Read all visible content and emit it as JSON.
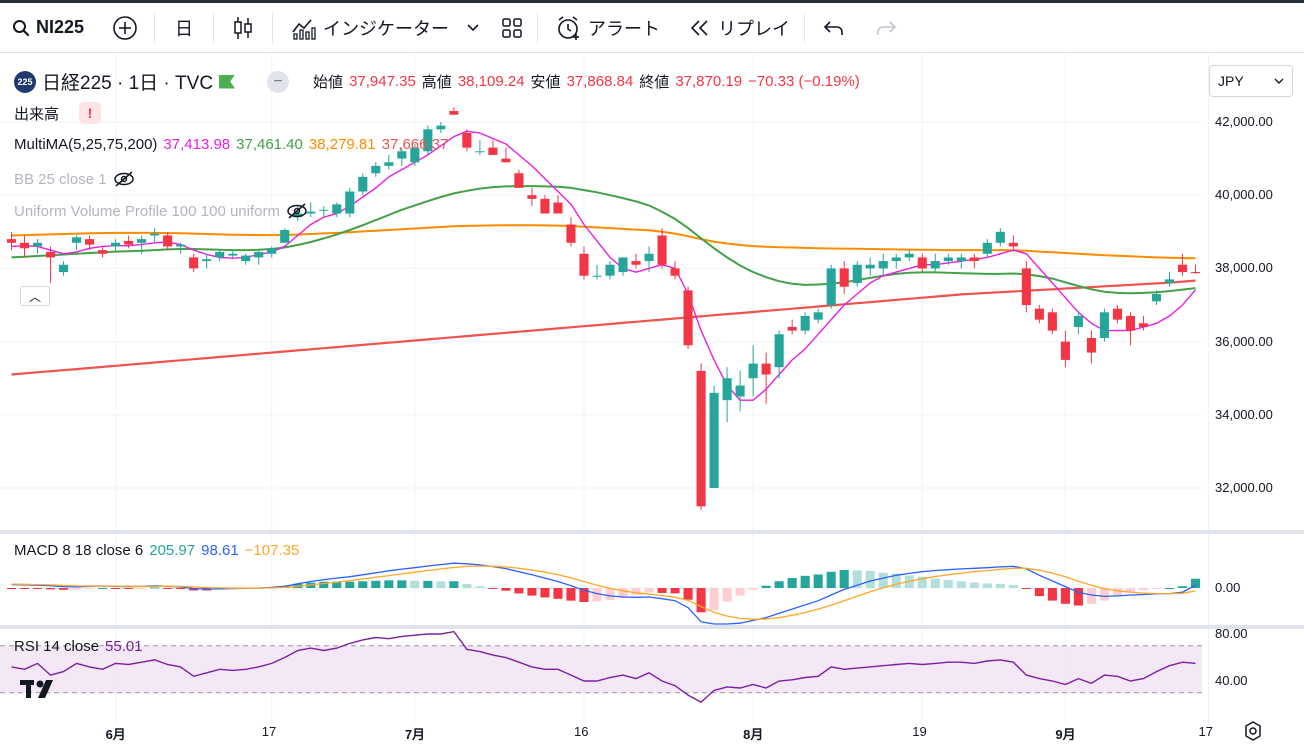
{
  "toolbar": {
    "symbol": "NI225",
    "interval": "日",
    "indicators_label": "インジケーター",
    "alert_label": "アラート",
    "replay_label": "リプレイ"
  },
  "legend": {
    "badge": "225",
    "title": "日経225 · 1日 · TVC",
    "open_label": "始値",
    "open": "37,947.35",
    "high_label": "高値",
    "high": "38,109.24",
    "low_label": "安値",
    "low": "37,868.84",
    "close_label": "終値",
    "close": "37,870.19",
    "change": "−70.33 (−0.19%)",
    "volume_label": "出来高",
    "multima_label": "MultiMA(5,25,75,200)",
    "ma5": "37,413.98",
    "ma25": "37,461.40",
    "ma75": "38,279.81",
    "ma200": "37,666.37",
    "bb_label": "BB 25 close 1",
    "vp_label": "Uniform Volume Profile 100 100 uniform",
    "macd_label": "MACD 8 18 close 6",
    "macd_hist": "205.97",
    "macd_line": "98.61",
    "macd_signal": "−107.35",
    "rsi_label": "RSI 14 close",
    "rsi_value": "55.01"
  },
  "currency": "JPY",
  "colors": {
    "up": "#26a69a",
    "down": "#f23645",
    "ma5": "#e91ee6",
    "ma25": "#43a047",
    "ma75": "#fb8c00",
    "ma200": "#ef5350",
    "macd_line": "#2962ff",
    "macd_signal": "#ffa726",
    "rsi": "#7b1fa2"
  },
  "chart_data": {
    "type": "candlestick",
    "price_axis": [
      "42,000.00",
      "40,000.00",
      "38,000.00",
      "36,000.00",
      "34,000.00",
      "32,000.00"
    ],
    "price_ticks": [
      42000,
      40000,
      38000,
      36000,
      34000,
      32000
    ],
    "ylim": [
      31000,
      43000
    ],
    "macd_axis": [
      "0.00"
    ],
    "rsi_axis": [
      "80.00",
      "40.00"
    ],
    "x_labels": [
      "6月",
      "17",
      "7月",
      "16",
      "8月",
      "19",
      "9月",
      "17"
    ],
    "candles": [
      [
        38800,
        39000,
        38500,
        38700
      ],
      [
        38700,
        38900,
        38300,
        38550
      ],
      [
        38600,
        38800,
        38400,
        38700
      ],
      [
        38450,
        38600,
        37600,
        38300
      ],
      [
        37900,
        38200,
        37800,
        38100
      ],
      [
        38700,
        38900,
        38500,
        38850
      ],
      [
        38800,
        38900,
        38500,
        38650
      ],
      [
        38500,
        38600,
        38300,
        38400
      ],
      [
        38600,
        38800,
        38450,
        38700
      ],
      [
        38750,
        38900,
        38550,
        38650
      ],
      [
        38700,
        38900,
        38400,
        38800
      ],
      [
        38900,
        39100,
        38700,
        38950
      ],
      [
        38900,
        39000,
        38500,
        38600
      ],
      [
        38600,
        38700,
        38400,
        38650
      ],
      [
        38300,
        38400,
        37900,
        38000
      ],
      [
        38200,
        38400,
        38000,
        38250
      ],
      [
        38300,
        38500,
        38200,
        38450
      ],
      [
        38350,
        38500,
        38250,
        38400
      ],
      [
        38200,
        38400,
        38100,
        38350
      ],
      [
        38300,
        38500,
        38100,
        38450
      ],
      [
        38400,
        38600,
        38300,
        38550
      ],
      [
        38700,
        39100,
        38700,
        39050
      ],
      [
        39400,
        39700,
        39300,
        39500
      ],
      [
        39500,
        39800,
        39400,
        39550
      ],
      [
        39600,
        39700,
        39400,
        39600
      ],
      [
        39500,
        39800,
        39400,
        39750
      ],
      [
        39500,
        40200,
        39400,
        40100
      ],
      [
        40100,
        40600,
        40000,
        40500
      ],
      [
        40600,
        40900,
        40500,
        40800
      ],
      [
        40800,
        41100,
        40700,
        40900
      ],
      [
        41000,
        41300,
        40800,
        41200
      ],
      [
        40900,
        41400,
        40800,
        41300
      ],
      [
        41200,
        41900,
        41100,
        41800
      ],
      [
        41800,
        42000,
        41700,
        41900
      ],
      [
        42300,
        42400,
        42200,
        42200
      ],
      [
        41700,
        41800,
        41200,
        41300
      ],
      [
        41200,
        41500,
        41100,
        41200
      ],
      [
        41300,
        41500,
        41100,
        41100
      ],
      [
        41000,
        41300,
        40900,
        40900
      ],
      [
        40600,
        40700,
        40200,
        40200
      ],
      [
        40000,
        40200,
        39700,
        39900
      ],
      [
        39900,
        40000,
        39500,
        39500
      ],
      [
        39800,
        40000,
        39500,
        39500
      ],
      [
        39200,
        39400,
        38600,
        38700
      ],
      [
        38400,
        38600,
        37700,
        37800
      ],
      [
        37800,
        38100,
        37700,
        37800
      ],
      [
        37800,
        38200,
        37700,
        38100
      ],
      [
        37900,
        38300,
        37800,
        38300
      ],
      [
        38200,
        38400,
        38000,
        38100
      ],
      [
        38200,
        38600,
        37900,
        38400
      ],
      [
        38900,
        39100,
        38000,
        38100
      ],
      [
        38000,
        38200,
        37700,
        37800
      ],
      [
        37400,
        37500,
        35800,
        35900
      ],
      [
        35200,
        35400,
        31400,
        31500
      ],
      [
        32000,
        34800,
        32000,
        34600
      ],
      [
        34400,
        35300,
        33800,
        35000
      ],
      [
        34500,
        35200,
        34100,
        34800
      ],
      [
        35000,
        35900,
        34500,
        35400
      ],
      [
        35400,
        35700,
        34300,
        35100
      ],
      [
        35300,
        36300,
        35000,
        36200
      ],
      [
        36400,
        36600,
        36200,
        36300
      ],
      [
        36300,
        36800,
        36200,
        36700
      ],
      [
        36600,
        36900,
        36500,
        36800
      ],
      [
        37000,
        38100,
        36900,
        38000
      ],
      [
        38000,
        38200,
        37300,
        37500
      ],
      [
        37600,
        38200,
        37500,
        38100
      ],
      [
        38000,
        38300,
        37800,
        38100
      ],
      [
        38000,
        38400,
        37800,
        38200
      ],
      [
        38200,
        38400,
        38000,
        38300
      ],
      [
        38300,
        38500,
        38200,
        38400
      ],
      [
        38300,
        38400,
        37900,
        38000
      ],
      [
        38000,
        38400,
        37900,
        38200
      ],
      [
        38200,
        38400,
        38100,
        38300
      ],
      [
        38200,
        38400,
        38000,
        38300
      ],
      [
        38300,
        38400,
        38000,
        38200
      ],
      [
        38400,
        38800,
        38300,
        38700
      ],
      [
        38700,
        39100,
        38600,
        39000
      ],
      [
        38700,
        38900,
        38500,
        38600
      ],
      [
        38000,
        38200,
        36800,
        37000
      ],
      [
        36900,
        37000,
        36500,
        36600
      ],
      [
        36800,
        36900,
        36200,
        36300
      ],
      [
        36000,
        36300,
        35300,
        35500
      ],
      [
        36400,
        36800,
        36200,
        36700
      ],
      [
        36100,
        36300,
        35400,
        35700
      ],
      [
        36100,
        36900,
        36000,
        36800
      ],
      [
        36900,
        37000,
        36500,
        36600
      ],
      [
        36700,
        36800,
        35900,
        36300
      ],
      [
        36500,
        36700,
        36300,
        36400
      ],
      [
        37100,
        37400,
        37000,
        37300
      ],
      [
        37600,
        37900,
        37500,
        37700
      ],
      [
        38100,
        38400,
        37800,
        37900
      ],
      [
        37900,
        38100,
        37850,
        37870
      ]
    ],
    "ma5": [
      38600,
      38620,
      38600,
      38500,
      38400,
      38450,
      38550,
      38600,
      38620,
      38620,
      38650,
      38700,
      38720,
      38650,
      38500,
      38380,
      38300,
      38280,
      38300,
      38380,
      38450,
      38600,
      38900,
      39200,
      39400,
      39500,
      39700,
      39950,
      40200,
      40500,
      40700,
      40900,
      41100,
      41350,
      41600,
      41750,
      41700,
      41550,
      41400,
      41100,
      40800,
      40450,
      40100,
      39750,
      39200,
      38750,
      38300,
      38000,
      37900,
      38000,
      38100,
      38000,
      37300,
      36300,
      35500,
      34800,
      34400,
      34400,
      34700,
      35100,
      35500,
      35800,
      36200,
      36600,
      37000,
      37300,
      37600,
      37800,
      37900,
      38000,
      38100,
      38100,
      38150,
      38200,
      38250,
      38300,
      38400,
      38500,
      38400,
      38000,
      37600,
      37200,
      36800,
      36500,
      36300,
      36300,
      36300,
      36400,
      36500,
      36700,
      37000,
      37414
    ],
    "ma25": [
      38300,
      38320,
      38340,
      38360,
      38380,
      38400,
      38420,
      38440,
      38460,
      38470,
      38480,
      38500,
      38520,
      38530,
      38530,
      38520,
      38510,
      38500,
      38500,
      38510,
      38530,
      38570,
      38640,
      38720,
      38820,
      38930,
      39050,
      39180,
      39320,
      39460,
      39600,
      39720,
      39840,
      39950,
      40050,
      40120,
      40180,
      40220,
      40240,
      40250,
      40250,
      40240,
      40230,
      40200,
      40140,
      40080,
      40000,
      39920,
      39830,
      39720,
      39550,
      39350,
      39100,
      38820,
      38550,
      38300,
      38080,
      37900,
      37760,
      37650,
      37580,
      37550,
      37560,
      37580,
      37620,
      37680,
      37740,
      37800,
      37850,
      37880,
      37890,
      37890,
      37880,
      37870,
      37860,
      37850,
      37850,
      37860,
      37840,
      37790,
      37720,
      37620,
      37520,
      37430,
      37360,
      37330,
      37320,
      37330,
      37350,
      37380,
      37420,
      37461
    ],
    "ma75": [
      38900,
      38910,
      38920,
      38930,
      38940,
      38950,
      38960,
      38965,
      38970,
      38970,
      38970,
      38970,
      38965,
      38960,
      38950,
      38940,
      38930,
      38920,
      38915,
      38910,
      38910,
      38915,
      38925,
      38940,
      38955,
      38970,
      38990,
      39010,
      39030,
      39050,
      39070,
      39090,
      39110,
      39130,
      39150,
      39160,
      39170,
      39175,
      39180,
      39180,
      39180,
      39175,
      39170,
      39160,
      39140,
      39120,
      39100,
      39080,
      39060,
      39040,
      39000,
      38950,
      38880,
      38800,
      38730,
      38680,
      38640,
      38610,
      38590,
      38580,
      38570,
      38560,
      38550,
      38545,
      38540,
      38535,
      38530,
      38525,
      38520,
      38515,
      38510,
      38505,
      38500,
      38500,
      38500,
      38500,
      38500,
      38495,
      38480,
      38460,
      38440,
      38420,
      38400,
      38380,
      38360,
      38345,
      38330,
      38315,
      38300,
      38290,
      38285,
      38280
    ],
    "ma200": [
      35100,
      35130,
      35160,
      35190,
      35220,
      35250,
      35280,
      35310,
      35340,
      35370,
      35400,
      35430,
      35460,
      35490,
      35520,
      35550,
      35580,
      35610,
      35640,
      35670,
      35700,
      35730,
      35760,
      35790,
      35820,
      35850,
      35880,
      35910,
      35940,
      35970,
      36000,
      36030,
      36060,
      36090,
      36120,
      36150,
      36180,
      36210,
      36240,
      36270,
      36300,
      36330,
      36360,
      36390,
      36420,
      36450,
      36480,
      36510,
      36540,
      36570,
      36600,
      36630,
      36660,
      36690,
      36720,
      36750,
      36780,
      36810,
      36840,
      36870,
      36900,
      36930,
      36960,
      36990,
      37020,
      37050,
      37080,
      37110,
      37140,
      37170,
      37200,
      37230,
      37260,
      37290,
      37310,
      37330,
      37350,
      37370,
      37390,
      37410,
      37430,
      37450,
      37470,
      37490,
      37510,
      37530,
      37550,
      37570,
      37590,
      37610,
      37640,
      37666
    ],
    "macd": [
      120,
      110,
      100,
      80,
      50,
      40,
      60,
      70,
      60,
      50,
      60,
      80,
      60,
      40,
      -20,
      -40,
      -30,
      -20,
      -10,
      0,
      20,
      60,
      150,
      230,
      300,
      350,
      400,
      470,
      540,
      610,
      670,
      720,
      780,
      830,
      880,
      860,
      820,
      760,
      690,
      580,
      470,
      350,
      230,
      80,
      -80,
      -200,
      -280,
      -320,
      -330,
      -320,
      -380,
      -450,
      -700,
      -1200,
      -1350,
      -1300,
      -1250,
      -1150,
      -1050,
      -900,
      -750,
      -600,
      -450,
      -250,
      -50,
      100,
      250,
      350,
      450,
      520,
      580,
      620,
      650,
      680,
      700,
      720,
      750,
      770,
      680,
      450,
      250,
      50,
      -150,
      -250,
      -300,
      -280,
      -250,
      -230,
      -210,
      -200,
      -150,
      99
    ],
    "macd_signal": [
      140,
      130,
      120,
      110,
      90,
      75,
      70,
      70,
      68,
      63,
      62,
      67,
      65,
      58,
      35,
      15,
      2,
      -6,
      -7,
      -5,
      3,
      20,
      60,
      110,
      160,
      210,
      260,
      320,
      380,
      440,
      500,
      560,
      620,
      680,
      730,
      770,
      780,
      770,
      750,
      700,
      640,
      560,
      470,
      360,
      230,
      100,
      -10,
      -100,
      -170,
      -220,
      -270,
      -330,
      -440,
      -660,
      -860,
      -1000,
      -1080,
      -1110,
      -1100,
      -1050,
      -970,
      -870,
      -750,
      -610,
      -450,
      -290,
      -130,
      10,
      130,
      240,
      330,
      410,
      470,
      530,
      580,
      620,
      660,
      700,
      700,
      630,
      530,
      400,
      240,
      100,
      -20,
      -100,
      -150,
      -180,
      -200,
      -200,
      -190,
      -107
    ],
    "rsi": [
      52,
      50,
      55,
      45,
      48,
      55,
      52,
      50,
      55,
      54,
      56,
      58,
      54,
      52,
      44,
      47,
      50,
      49,
      50,
      52,
      55,
      60,
      66,
      68,
      66,
      68,
      72,
      75,
      77,
      76,
      78,
      79,
      80,
      80,
      82,
      67,
      65,
      62,
      60,
      56,
      52,
      50,
      50,
      45,
      40,
      40,
      43,
      45,
      42,
      47,
      40,
      36,
      28,
      22,
      32,
      35,
      34,
      37,
      34,
      40,
      41,
      43,
      44,
      52,
      50,
      51,
      52,
      53,
      54,
      55,
      54,
      55,
      56,
      56,
      55,
      57,
      58,
      56,
      45,
      42,
      40,
      37,
      42,
      38,
      45,
      44,
      40,
      42,
      48,
      53,
      56,
      55
    ]
  }
}
